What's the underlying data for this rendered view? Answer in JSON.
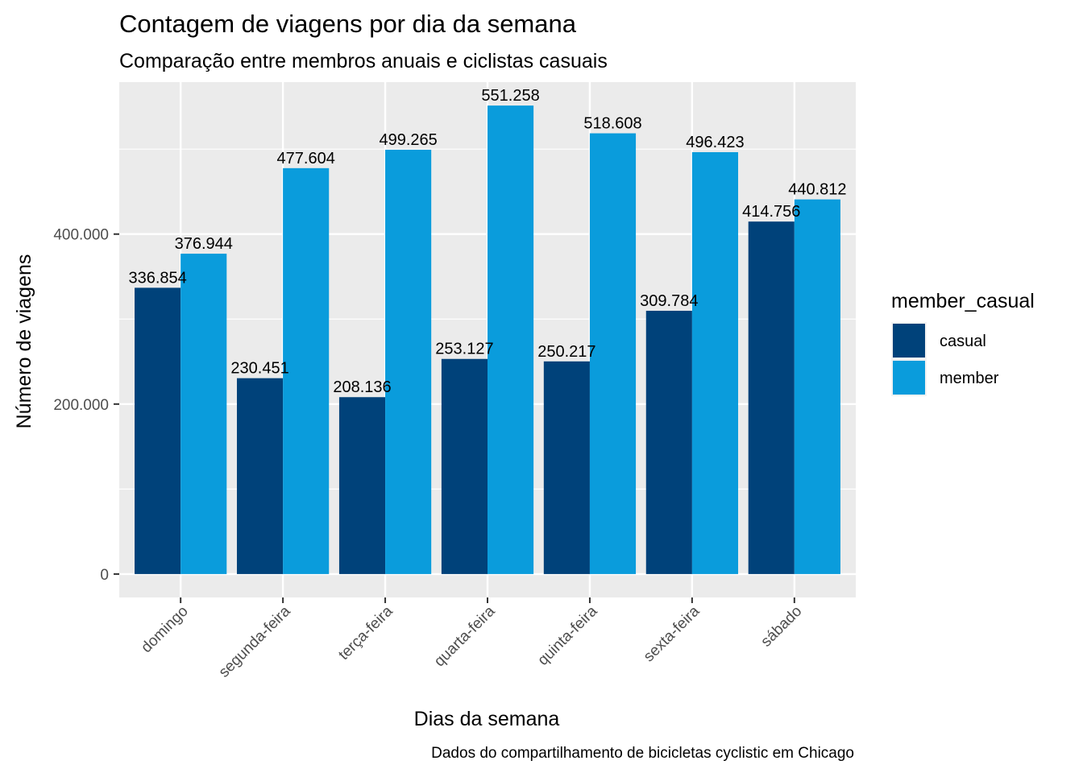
{
  "chart_data": {
    "type": "bar",
    "title": "Contagem de viagens por dia da semana",
    "subtitle": "Comparação entre membros anuais e ciclistas casuais",
    "xlabel": "Dias da semana",
    "ylabel": "Número de viagens",
    "caption": "Dados do compartilhamento de bicicletas cyclistic em Chicago",
    "categories": [
      "domingo",
      "segunda-feira",
      "terça-feira",
      "quarta-feira",
      "quinta-feira",
      "sexta-feira",
      "sábado"
    ],
    "series": [
      {
        "name": "casual",
        "color": "#00427A",
        "values": [
          336854,
          230451,
          208136,
          253127,
          250217,
          309784,
          414756
        ],
        "labels": [
          "336.854",
          "230.451",
          "208.136",
          "253.127",
          "250.217",
          "309.784",
          "414.756"
        ]
      },
      {
        "name": "member",
        "color": "#0A9CDC",
        "values": [
          376944,
          477604,
          499265,
          551258,
          518608,
          496423,
          440812
        ],
        "labels": [
          "376.944",
          "477.604",
          "499.265",
          "551.258",
          "518.608",
          "496.423",
          "440.812"
        ]
      }
    ],
    "ylim": [
      -27562.9,
      578820.9
    ],
    "yticks": [
      {
        "value": 0,
        "label": "0"
      },
      {
        "value": 200000,
        "label": "200.000"
      },
      {
        "value": 400000,
        "label": "400.000"
      }
    ],
    "yminor": [
      100000,
      300000,
      500000
    ],
    "grid": true,
    "panel_background": "#EBEBEB",
    "legend": {
      "title": "member_casual",
      "position": "right"
    }
  }
}
